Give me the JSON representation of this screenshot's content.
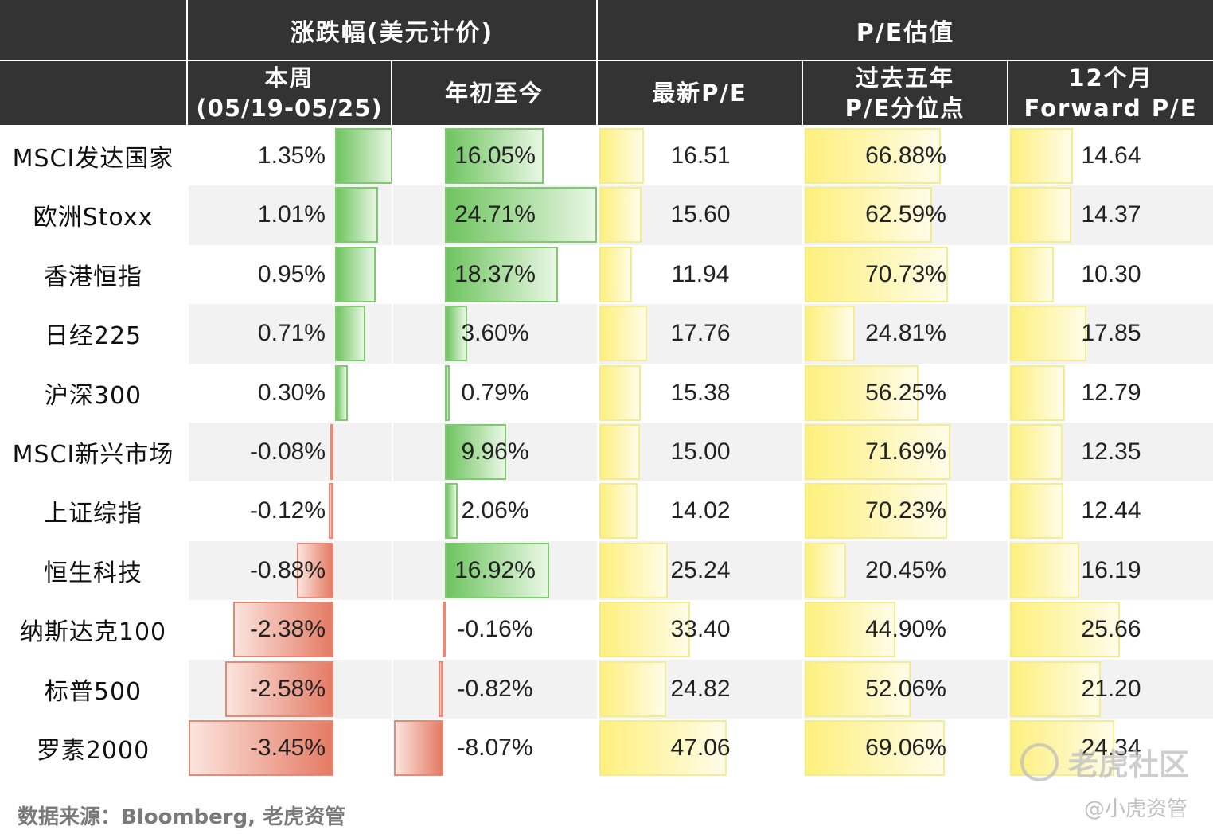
{
  "header": {
    "group_change": "涨跌幅(美元计价)",
    "group_pe": "P/E估值",
    "col_week_line1": "本周",
    "col_week_line2": "(05/19-05/25)",
    "col_ytd": "年初至今",
    "col_latest_pe": "最新P/E",
    "col_pct_line1": "过去五年",
    "col_pct_line2": "P/E分位点",
    "col_fwd_line1": "12个月",
    "col_fwd_line2": "Forward P/E"
  },
  "chart_data": {
    "type": "table",
    "rows": [
      {
        "name": "MSCI发达国家",
        "week": "1.35%",
        "ytd": "16.05%",
        "pe": "16.51",
        "pct": "66.88%",
        "fwd": "14.64"
      },
      {
        "name": "欧洲Stoxx",
        "week": "1.01%",
        "ytd": "24.71%",
        "pe": "15.60",
        "pct": "62.59%",
        "fwd": "14.37"
      },
      {
        "name": "香港恒指",
        "week": "0.95%",
        "ytd": "18.37%",
        "pe": "11.94",
        "pct": "70.73%",
        "fwd": "10.30"
      },
      {
        "name": "日经225",
        "week": "0.71%",
        "ytd": "3.60%",
        "pe": "17.76",
        "pct": "24.81%",
        "fwd": "17.85"
      },
      {
        "name": "沪深300",
        "week": "0.30%",
        "ytd": "0.79%",
        "pe": "15.38",
        "pct": "56.25%",
        "fwd": "12.79"
      },
      {
        "name": "MSCI新兴市场",
        "week": "-0.08%",
        "ytd": "9.96%",
        "pe": "15.00",
        "pct": "71.69%",
        "fwd": "12.35"
      },
      {
        "name": "上证综指",
        "week": "-0.12%",
        "ytd": "2.06%",
        "pe": "14.02",
        "pct": "70.23%",
        "fwd": "12.44"
      },
      {
        "name": "恒生科技",
        "week": "-0.88%",
        "ytd": "16.92%",
        "pe": "25.24",
        "pct": "20.45%",
        "fwd": "16.19"
      },
      {
        "name": "纳斯达克100",
        "week": "-2.38%",
        "ytd": "-0.16%",
        "pe": "33.40",
        "pct": "44.90%",
        "fwd": "25.66"
      },
      {
        "name": "标普500",
        "week": "-2.58%",
        "ytd": "-0.82%",
        "pe": "24.82",
        "pct": "52.06%",
        "fwd": "21.20"
      },
      {
        "name": "罗素2000",
        "week": "-3.45%",
        "ytd": "-8.07%",
        "pe": "47.06",
        "pct": "69.06%",
        "fwd": "24.34"
      }
    ]
  },
  "footer": {
    "source": "数据来源：Bloomberg, 老虎资管",
    "watermark_brand": "老虎社区",
    "watermark_user": "@小虎资管"
  }
}
